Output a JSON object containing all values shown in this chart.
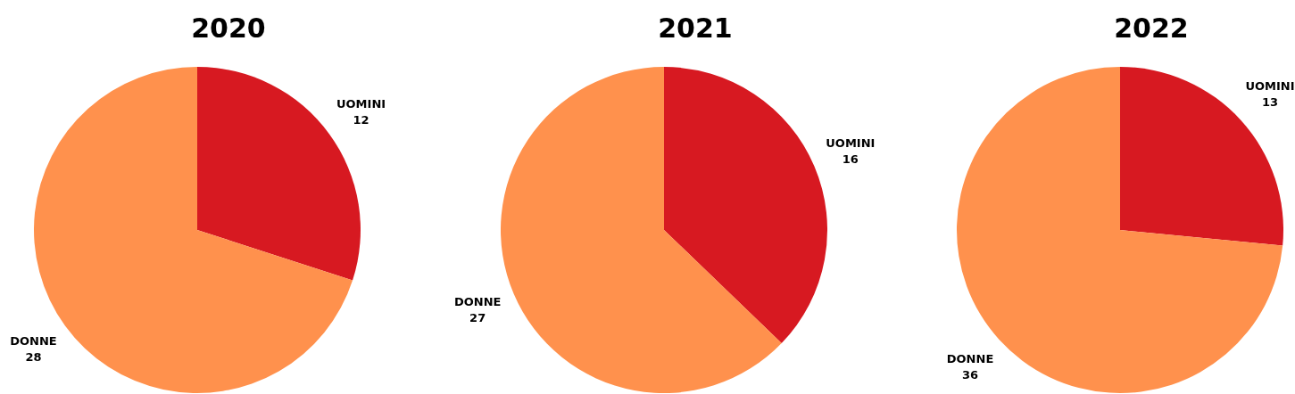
{
  "chart_data": [
    {
      "type": "pie",
      "title": "2020",
      "categories": [
        "UOMINI",
        "DONNE"
      ],
      "values": [
        12,
        28
      ],
      "colors": [
        "#d71921",
        "#ff914d"
      ],
      "data_labels": true
    },
    {
      "type": "pie",
      "title": "2021",
      "categories": [
        "UOMINI",
        "DONNE"
      ],
      "values": [
        16,
        27
      ],
      "colors": [
        "#d71921",
        "#ff914d"
      ],
      "data_labels": true
    },
    {
      "type": "pie",
      "title": "2022",
      "categories": [
        "UOMINI",
        "DONNE"
      ],
      "values": [
        13,
        36
      ],
      "colors": [
        "#d71921",
        "#ff914d"
      ],
      "data_labels": true
    }
  ]
}
